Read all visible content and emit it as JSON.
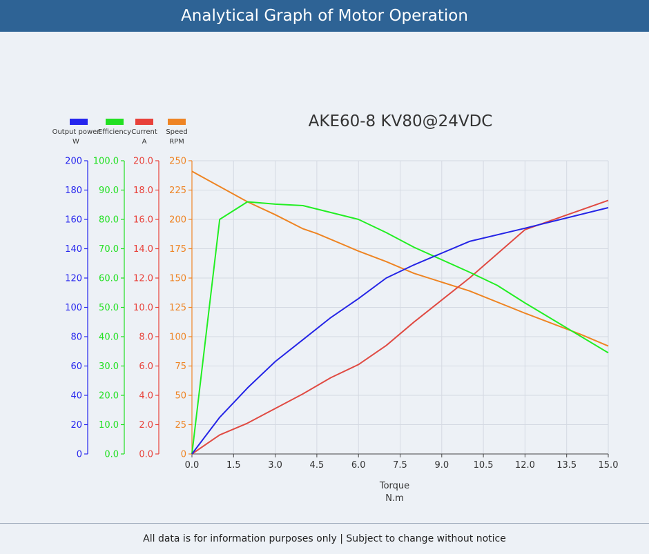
{
  "header": {
    "title": "Analytical Graph of Motor Operation"
  },
  "footer": {
    "note": "All data is for information purposes only | Subject to change without notice"
  },
  "chart_data": {
    "type": "line",
    "title": "AKE60-8 KV80@24VDC",
    "xlabel": [
      "Torque",
      "N.m"
    ],
    "x_ticks": [
      "0.0",
      "1.5",
      "3.0",
      "4.5",
      "6.0",
      "7.5",
      "9.0",
      "10.5",
      "12.0",
      "13.5",
      "15.0"
    ],
    "xlim": [
      0,
      15
    ],
    "grid": true,
    "legend_position": "top-left",
    "axes": [
      {
        "id": "power",
        "label": [
          "Output power",
          "W"
        ],
        "color": "#2626ee",
        "min": 0,
        "max": 200,
        "ticks": [
          "0",
          "20",
          "40",
          "60",
          "80",
          "100",
          "120",
          "140",
          "160",
          "180",
          "200"
        ]
      },
      {
        "id": "eff",
        "label": [
          "Efficiency",
          ""
        ],
        "color": "#22e022",
        "min": 0,
        "max": 100,
        "ticks": [
          "0.0",
          "10.0",
          "20.0",
          "30.0",
          "40.0",
          "50.0",
          "60.0",
          "70.0",
          "80.0",
          "90.0",
          "100.0"
        ]
      },
      {
        "id": "current",
        "label": [
          "Current",
          "A"
        ],
        "color": "#e8413a",
        "min": 0,
        "max": 20,
        "ticks": [
          "0.0",
          "2.0",
          "4.0",
          "6.0",
          "8.0",
          "10.0",
          "12.0",
          "14.0",
          "16.0",
          "18.0",
          "20.0"
        ]
      },
      {
        "id": "speed",
        "label": [
          "Speed",
          "RPM"
        ],
        "color": "#ee8424",
        "min": 0,
        "max": 250,
        "ticks": [
          "0",
          "25",
          "50",
          "75",
          "100",
          "125",
          "150",
          "175",
          "200",
          "225",
          "250"
        ]
      }
    ],
    "series": [
      {
        "name": "Output power",
        "axis": "power",
        "color": "#2424e6",
        "points": [
          [
            0,
            0
          ],
          [
            1,
            25
          ],
          [
            2,
            45
          ],
          [
            3,
            63
          ],
          [
            4,
            78
          ],
          [
            5,
            93
          ],
          [
            6,
            106
          ],
          [
            7,
            120
          ],
          [
            8,
            129
          ],
          [
            10,
            145
          ],
          [
            12,
            154
          ],
          [
            15,
            168
          ]
        ]
      },
      {
        "name": "Efficiency",
        "axis": "eff",
        "color": "#22ee22",
        "points": [
          [
            0,
            0
          ],
          [
            1,
            80
          ],
          [
            2,
            86
          ],
          [
            3,
            85.2
          ],
          [
            4,
            84.7
          ],
          [
            6,
            80
          ],
          [
            7,
            75.5
          ],
          [
            8,
            70.5
          ],
          [
            10,
            62
          ],
          [
            11,
            57.5
          ],
          [
            12,
            51.5
          ],
          [
            15,
            34.5
          ]
        ]
      },
      {
        "name": "Current",
        "axis": "current",
        "color": "#e04a42",
        "points": [
          [
            0,
            0
          ],
          [
            1,
            1.3
          ],
          [
            2,
            2.1
          ],
          [
            3,
            3.1
          ],
          [
            4,
            4.1
          ],
          [
            5,
            5.2
          ],
          [
            6,
            6.1
          ],
          [
            7,
            7.4
          ],
          [
            8,
            9
          ],
          [
            10,
            12
          ],
          [
            12,
            15.3
          ],
          [
            15,
            17.3
          ]
        ]
      },
      {
        "name": "Speed",
        "axis": "speed",
        "color": "#ee8422",
        "points": [
          [
            0,
            241
          ],
          [
            2,
            215
          ],
          [
            3,
            204
          ],
          [
            4,
            192
          ],
          [
            4.5,
            188
          ],
          [
            6,
            173
          ],
          [
            7,
            164
          ],
          [
            8,
            154
          ],
          [
            10,
            139
          ],
          [
            12,
            120
          ],
          [
            14,
            102
          ],
          [
            15,
            92
          ]
        ]
      }
    ]
  }
}
